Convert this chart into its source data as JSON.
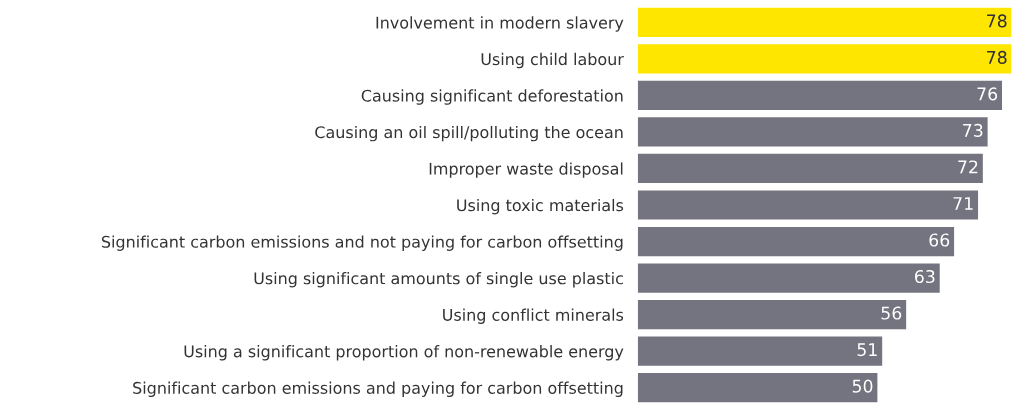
{
  "chart_data": {
    "type": "bar",
    "orientation": "horizontal",
    "categories": [
      "Involvement in modern slavery",
      "Using child labour",
      "Causing significant deforestation",
      "Causing an oil spill/polluting the ocean",
      "Improper waste disposal",
      "Using toxic materials",
      "Significant carbon emissions and not paying for carbon offsetting",
      "Using significant amounts of single use plastic",
      "Using conflict minerals",
      "Using a significant proportion of non-renewable energy",
      "Significant carbon emissions and paying for carbon offsetting"
    ],
    "values": [
      78,
      78,
      76,
      73,
      72,
      71,
      66,
      63,
      56,
      51,
      50
    ],
    "colors": [
      "#ffe600",
      "#ffe600",
      "#747480",
      "#747480",
      "#747480",
      "#747480",
      "#747480",
      "#747480",
      "#747480",
      "#747480",
      "#747480"
    ],
    "xlim": [
      0,
      78
    ],
    "data_labels": true,
    "tick_labels": "y",
    "grid": false,
    "legend": false
  }
}
